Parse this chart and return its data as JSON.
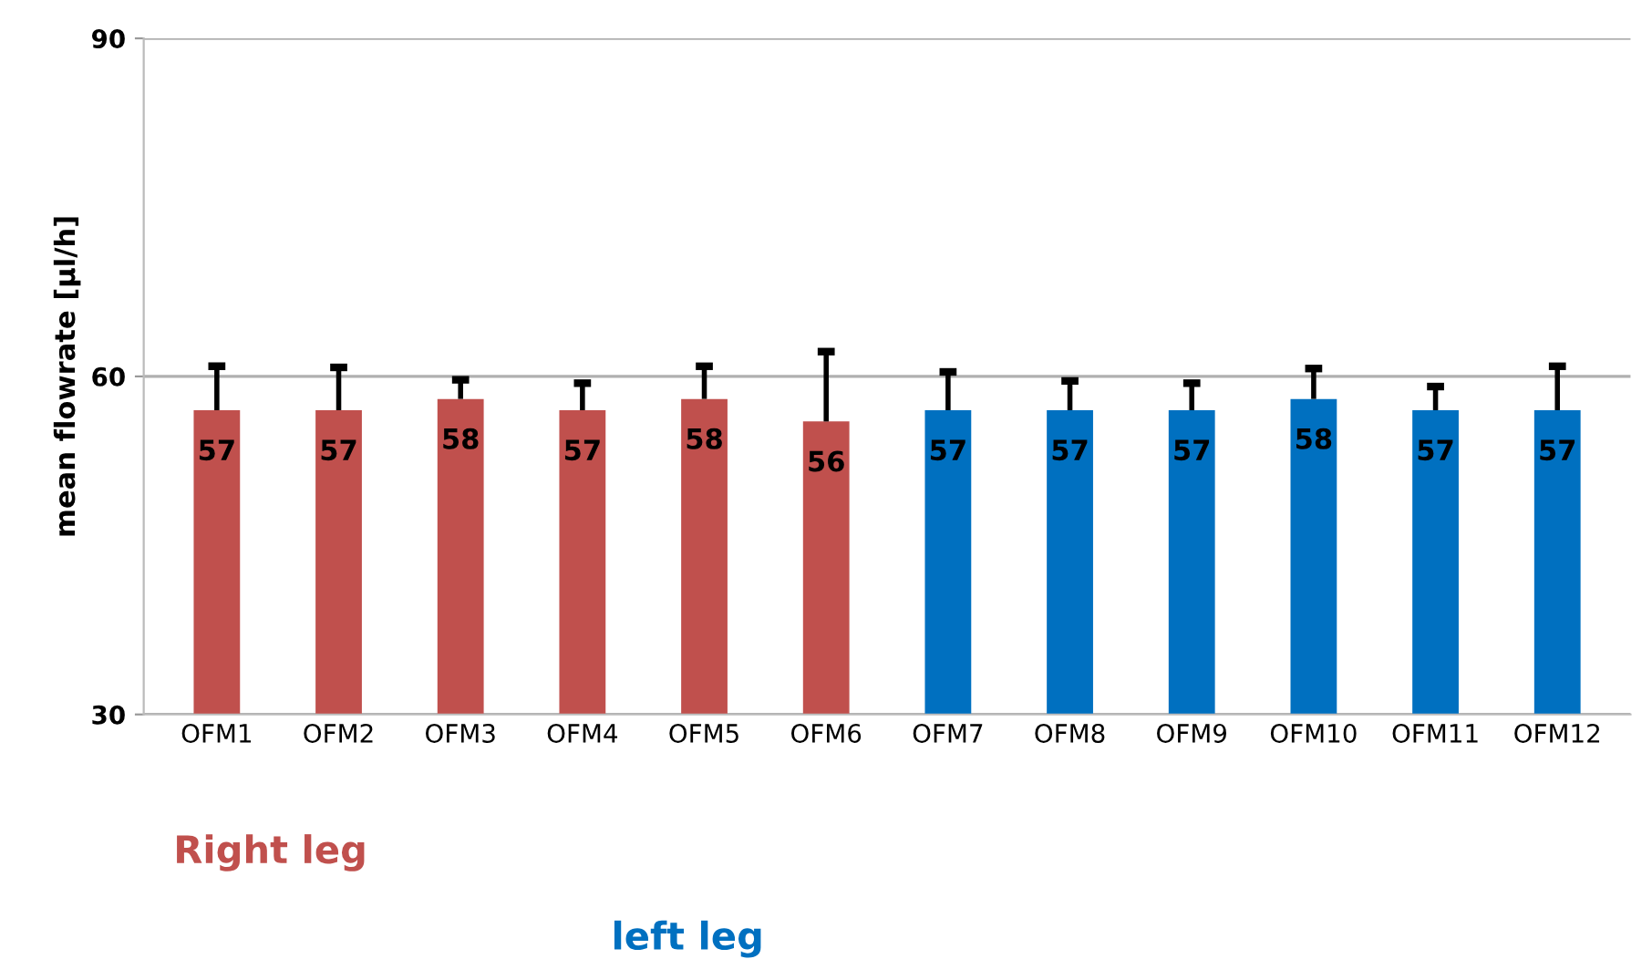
{
  "chart_data": {
    "type": "bar",
    "ylabel": "mean flowrate [µl/h]",
    "categories": [
      "OFM1",
      "OFM2",
      "OFM3",
      "OFM4",
      "OFM5",
      "OFM6",
      "OFM7",
      "OFM8",
      "OFM9",
      "OFM10",
      "OFM11",
      "OFM12"
    ],
    "values": [
      57,
      57,
      58,
      57,
      58,
      56,
      57,
      57,
      57,
      58,
      57,
      57
    ],
    "colors": [
      "#c0504d",
      "#c0504d",
      "#c0504d",
      "#c0504d",
      "#c0504d",
      "#c0504d",
      "#0070c0",
      "#0070c0",
      "#0070c0",
      "#0070c0",
      "#0070c0",
      "#0070c0"
    ],
    "errors": [
      [
        57,
        60.9
      ],
      [
        57,
        60.8
      ],
      [
        58,
        59.7
      ],
      [
        57,
        59.4
      ],
      [
        58,
        60.9
      ],
      [
        56,
        62.2
      ],
      [
        57,
        60.4
      ],
      [
        57,
        59.6
      ],
      [
        57,
        59.4
      ],
      [
        58,
        60.7
      ],
      [
        57,
        59.1
      ],
      [
        57,
        60.9
      ]
    ],
    "data_labels": true,
    "ylim": [
      30,
      90
    ],
    "yticks": [
      30,
      60,
      90
    ],
    "grid": "y",
    "annotations": [
      "Right leg",
      "left leg"
    ]
  }
}
